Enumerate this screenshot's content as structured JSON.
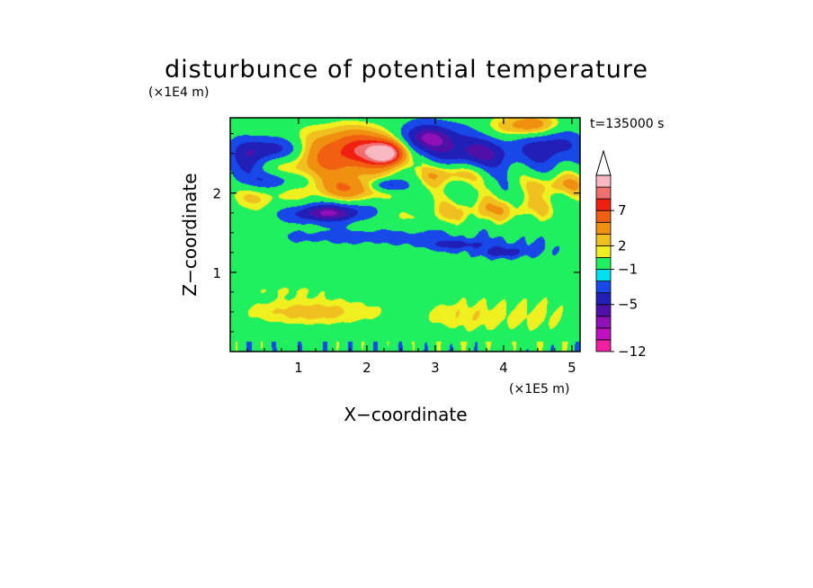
{
  "chart_data": {
    "type": "heatmap",
    "title": "disturbunce of potential temperature",
    "xlabel": "X−coordinate",
    "ylabel": "Z−coordinate",
    "x_unit": "(×1E5 m)",
    "y_unit": "(×1E4 m)",
    "time_label": "t=135000 s",
    "xlim": [
      0,
      5.12
    ],
    "ylim": [
      0,
      2.95
    ],
    "x_ticks": [
      "1",
      "2",
      "3",
      "4",
      "5"
    ],
    "y_ticks": [
      "1",
      "2"
    ],
    "x_tick_values": [
      1,
      2,
      3,
      4,
      5
    ],
    "y_tick_values": [
      1,
      2
    ],
    "colorbar": {
      "extend_top_arrow": true,
      "labels": [
        "7",
        "2",
        "−1",
        "−5",
        "−12"
      ],
      "label_values": [
        7,
        2,
        -1,
        -5,
        -12
      ],
      "colors": [
        "#f020a0",
        "#c010c0",
        "#9010b8",
        "#5010a8",
        "#2020b8",
        "#1848e8",
        "#00e0f0",
        "#20f060",
        "#f0f020",
        "#f0c020",
        "#f09010",
        "#f06010",
        "#f02010",
        "#f07070",
        "#f8b8c0"
      ]
    },
    "field": {
      "description": "contoured potential temperature disturbance over x in [0,5.12] and z in [0,2.95]",
      "background_level_index": 7,
      "blobs": [
        {
          "x": 1.2,
          "z": 0.5,
          "rx": 1.1,
          "rz": 0.18,
          "a": 2.5
        },
        {
          "x": 3.5,
          "z": 0.45,
          "rx": 0.8,
          "rz": 0.25,
          "a": 1.8
        },
        {
          "x": 4.6,
          "z": 0.45,
          "rx": 0.5,
          "rz": 0.3,
          "a": 1.2
        },
        {
          "x": 0.8,
          "z": 0.78,
          "rx": 1.2,
          "rz": 0.1,
          "a": 1.0
        },
        {
          "x": 2.0,
          "z": 1.45,
          "rx": 1.8,
          "rz": 0.12,
          "a": -1.6
        },
        {
          "x": 4.0,
          "z": 1.3,
          "rx": 1.0,
          "rz": 0.12,
          "a": -1.5
        },
        {
          "x": 2.1,
          "z": 1.7,
          "rx": 1.5,
          "rz": 0.12,
          "a": 1.3
        },
        {
          "x": 1.25,
          "z": 1.72,
          "rx": 1.0,
          "rz": 0.1,
          "a": -1.5
        },
        {
          "x": 3.3,
          "z": 1.35,
          "rx": 0.4,
          "rz": 0.06,
          "a": -3.0
        },
        {
          "x": 4.0,
          "z": 1.25,
          "rx": 0.3,
          "rz": 0.06,
          "a": -3.5
        },
        {
          "x": 0.4,
          "z": 2.05,
          "rx": 0.6,
          "rz": 0.3,
          "a": 2.5
        },
        {
          "x": 1.45,
          "z": 1.75,
          "rx": 0.55,
          "rz": 0.12,
          "a": -6.5
        },
        {
          "x": 0.6,
          "z": 2.55,
          "rx": 0.45,
          "rz": 0.15,
          "a": -5.0
        },
        {
          "x": 0.6,
          "z": 2.15,
          "rx": 0.45,
          "rz": 0.12,
          "a": -4.5
        },
        {
          "x": 0.2,
          "z": 2.35,
          "rx": 0.25,
          "rz": 0.25,
          "a": -4.0
        },
        {
          "x": 1.4,
          "z": 2.45,
          "rx": 0.6,
          "rz": 0.35,
          "a": 4.5
        },
        {
          "x": 2.0,
          "z": 2.55,
          "rx": 0.5,
          "rz": 0.25,
          "a": 6.5
        },
        {
          "x": 2.3,
          "z": 2.5,
          "rx": 0.25,
          "rz": 0.15,
          "a": 9.0
        },
        {
          "x": 1.8,
          "z": 2.05,
          "rx": 0.5,
          "rz": 0.15,
          "a": 4.0
        },
        {
          "x": 2.9,
          "z": 2.7,
          "rx": 0.45,
          "rz": 0.18,
          "a": -6.5
        },
        {
          "x": 3.6,
          "z": 2.5,
          "rx": 0.6,
          "rz": 0.2,
          "a": -5.5
        },
        {
          "x": 3.2,
          "z": 2.25,
          "rx": 0.4,
          "rz": 0.15,
          "a": 4.0
        },
        {
          "x": 4.7,
          "z": 2.6,
          "rx": 0.4,
          "rz": 0.25,
          "a": -4.5
        },
        {
          "x": 4.4,
          "z": 2.85,
          "rx": 0.5,
          "rz": 0.15,
          "a": 5.0
        },
        {
          "x": 4.8,
          "z": 2.1,
          "rx": 0.4,
          "rz": 0.15,
          "a": 3.5
        },
        {
          "x": 3.9,
          "z": 1.8,
          "rx": 0.9,
          "rz": 0.15,
          "a": 2.5
        },
        {
          "x": 2.3,
          "z": 2.1,
          "rx": 0.25,
          "rz": 0.08,
          "a": -5.0
        }
      ]
    }
  }
}
